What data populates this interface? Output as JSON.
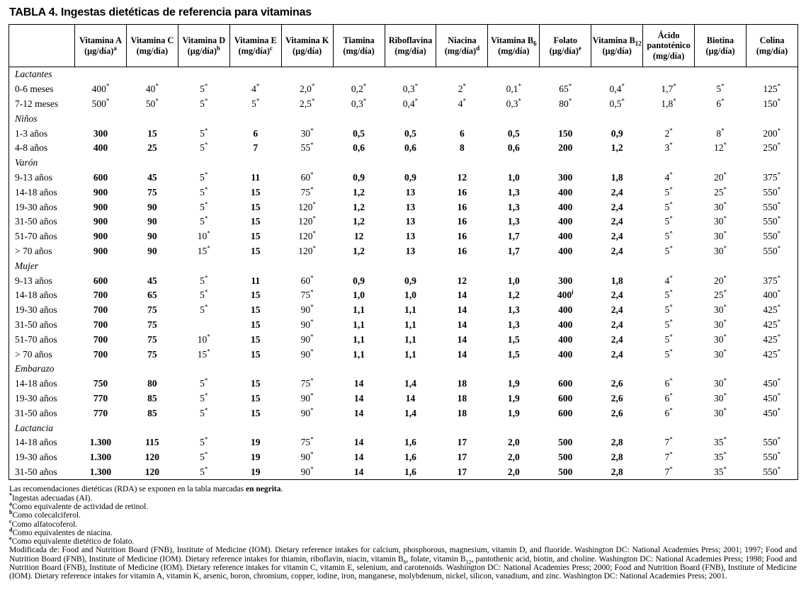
{
  "page": {
    "title": "TABLA 4. Ingestas dietéticas de referencia para vitaminas"
  },
  "table": {
    "row_header_label": "",
    "columns": [
      "Vitamina A|(µg/día)^{a}",
      "Vitamina C|(mg/día)",
      "Vitamina D|(µg/día)^{b}",
      "Vitamina E|(mg/día)^{c}",
      "Vitamina K|(µg/día)",
      "Tiamina|(mg/día)",
      "Riboflavina|(mg/día)",
      "Niacina|(mg/día)^{d}",
      "Vitamina B_{6}|(mg/día)",
      "Folato|(µg/día)^{e}",
      "Vitamina B_{12}|(µg/día)",
      "Ácido pantoténico|(mg/día)",
      "Biotina|(µg/día)",
      "Colina|(mg/día)"
    ],
    "rows": [
      {
        "type": "section",
        "label": "Lactantes"
      },
      {
        "type": "data",
        "label": "0-6 meses",
        "cells": [
          "400^{*}",
          "40^{*}",
          "5^{*}",
          "4^{*}",
          "2,0^{*}",
          "0,2^{*}",
          "0,3^{*}",
          "2^{*}",
          "0,1^{*}",
          "65^{*}",
          "0,4^{*}",
          "1,7^{*}",
          "5^{*}",
          "125^{*}"
        ]
      },
      {
        "type": "data",
        "label": "7-12 meses",
        "cells": [
          "500^{*}",
          "50^{*}",
          "5^{*}",
          "5^{*}",
          "2,5^{*}",
          "0,3^{*}",
          "0,4^{*}",
          "4^{*}",
          "0,3^{*}",
          "80^{*}",
          "0,5^{*}",
          "1,8^{*}",
          "6^{*}",
          "150^{*}"
        ]
      },
      {
        "type": "section",
        "label": "Niños"
      },
      {
        "type": "data",
        "label": "1-3 años",
        "cells": [
          "**300**",
          "**15**",
          "5^{*}",
          "**6**",
          "30^{*}",
          "**0,5**",
          "**0,5**",
          "**6**",
          "**0,5**",
          "**150**",
          "**0,9**",
          "2^{*}",
          "8^{*}",
          "200^{*}"
        ]
      },
      {
        "type": "data",
        "label": "4-8 años",
        "cells": [
          "**400**",
          "**25**",
          "5^{*}",
          "**7**",
          "55^{*}",
          "**0,6**",
          "**0,6**",
          "**8**",
          "**0,6**",
          "**200**",
          "**1,2**",
          "3^{*}",
          "12^{*}",
          "250^{*}"
        ]
      },
      {
        "type": "section",
        "label": "Varón"
      },
      {
        "type": "data",
        "label": "9-13 años",
        "cells": [
          "**600**",
          "**45**",
          "5^{*}",
          "**11**",
          "60^{*}",
          "**0,9**",
          "**0,9**",
          "**12**",
          "**1,0**",
          "**300**",
          "**1,8**",
          "4^{*}",
          "20^{*}",
          "375^{*}"
        ]
      },
      {
        "type": "data",
        "label": "14-18 años",
        "cells": [
          "**900**",
          "**75**",
          "5^{*}",
          "**15**",
          "75^{*}",
          "**1,2**",
          "**13**",
          "**16**",
          "**1,3**",
          "**400**",
          "**2,4**",
          "5^{*}",
          "25^{*}",
          "550^{*}"
        ]
      },
      {
        "type": "data",
        "label": "19-30 años",
        "cells": [
          "**900**",
          "**90**",
          "5^{*}",
          "**15**",
          "120^{*}",
          "**1,2**",
          "**13**",
          "**16**",
          "**1,3**",
          "**400**",
          "**2,4**",
          "5^{*}",
          "30^{*}",
          "550^{*}"
        ]
      },
      {
        "type": "data",
        "label": "31-50 años",
        "cells": [
          "**900**",
          "**90**",
          "5^{*}",
          "**15**",
          "120^{*}",
          "**1,2**",
          "**13**",
          "**16**",
          "**1,3**",
          "**400**",
          "**2,4**",
          "5^{*}",
          "30^{*}",
          "550^{*}"
        ]
      },
      {
        "type": "data",
        "label": "51-70 años",
        "cells": [
          "**900**",
          "**90**",
          "10^{*}",
          "**15**",
          "120^{*}",
          "**12**",
          "**13**",
          "**16**",
          "**1,7**",
          "**400**",
          "**2,4**",
          "5^{*}",
          "30^{*}",
          "550^{*}"
        ]
      },
      {
        "type": "data",
        "label": "> 70 años",
        "cells": [
          "**900**",
          "**90**",
          "15^{*}",
          "**15**",
          "120^{*}",
          "**1,2**",
          "**13**",
          "**16**",
          "**1,7**",
          "**400**",
          "**2,4**",
          "5^{*}",
          "30^{*}",
          "550^{*}"
        ]
      },
      {
        "type": "section",
        "label": "Mujer"
      },
      {
        "type": "data",
        "label": "9-13 años",
        "cells": [
          "**600**",
          "**45**",
          "5^{*}",
          "**11**",
          "60^{*}",
          "**0,9**",
          "**0,9**",
          "**12**",
          "**1,0**",
          "**300**",
          "**1,8**",
          "4^{*}",
          "20^{*}",
          "375^{*}"
        ]
      },
      {
        "type": "data",
        "label": "14-18 años",
        "cells": [
          "**700**",
          "**65**",
          "5^{*}",
          "**15**",
          "75^{*}",
          "**1,0**",
          "**1,0**",
          "**14**",
          "**1,2**",
          "**400^{i}**",
          "**2,4**",
          "5^{*}",
          "25^{*}",
          "400^{*}"
        ]
      },
      {
        "type": "data",
        "label": "19-30 años",
        "cells": [
          "**700**",
          "**75**",
          "5^{*}",
          "**15**",
          "90^{*}",
          "**1,1**",
          "**1,1**",
          "**14**",
          "**1,3**",
          "**400**",
          "**2,4**",
          "5^{*}",
          "30^{*}",
          "425^{*}"
        ]
      },
      {
        "type": "data",
        "label": "31-50 años",
        "cells": [
          "**700**",
          "**75**",
          "",
          "**15**",
          "90^{*}",
          "**1,1**",
          "**1,1**",
          "**14**",
          "**1,3**",
          "**400**",
          "**2,4**",
          "5^{*}",
          "30^{*}",
          "425^{*}"
        ]
      },
      {
        "type": "data",
        "label": "51-70 años",
        "cells": [
          "**700**",
          "**75**",
          "10^{*}",
          "**15**",
          "90^{*}",
          "**1,1**",
          "**1,1**",
          "**14**",
          "**1,5**",
          "**400**",
          "**2,4**",
          "5^{*}",
          "30^{*}",
          "425^{*}"
        ]
      },
      {
        "type": "data",
        "label": "> 70 años",
        "cells": [
          "**700**",
          "**75**",
          "15^{*}",
          "**15**",
          "90^{*}",
          "**1,1**",
          "**1,1**",
          "**14**",
          "**1,5**",
          "**400**",
          "**2,4**",
          "5^{*}",
          "30^{*}",
          "425^{*}"
        ]
      },
      {
        "type": "section",
        "label": "Embarazo"
      },
      {
        "type": "data",
        "label": "14-18 años",
        "cells": [
          "**750**",
          "**80**",
          "5^{*}",
          "**15**",
          "75^{*}",
          "**14**",
          "**1,4**",
          "**18**",
          "**1,9**",
          "**600**",
          "**2,6**",
          "6^{*}",
          "30^{*}",
          "450^{*}"
        ]
      },
      {
        "type": "data",
        "label": "19-30 años",
        "cells": [
          "**770**",
          "**85**",
          "5^{*}",
          "**15**",
          "90^{*}",
          "**14**",
          "**14**",
          "**18**",
          "**1,9**",
          "**600**",
          "**2,6**",
          "6^{*}",
          "30^{*}",
          "450^{*}"
        ]
      },
      {
        "type": "data",
        "label": "31-50 años",
        "cells": [
          "**770**",
          "**85**",
          "5^{*}",
          "**15**",
          "90^{*}",
          "**14**",
          "**1,4**",
          "**18**",
          "**1,9**",
          "**600**",
          "**2,6**",
          "6^{*}",
          "30^{*}",
          "450^{*}"
        ]
      },
      {
        "type": "section",
        "label": "Lactancia"
      },
      {
        "type": "data",
        "label": "14-18 años",
        "cells": [
          "**1.300**",
          "**115**",
          "5^{*}",
          "**19**",
          "75^{*}",
          "**14**",
          "**1,6**",
          "**17**",
          "**2,0**",
          "**500**",
          "**2,8**",
          "7^{*}",
          "35^{*}",
          "550^{*}"
        ]
      },
      {
        "type": "data",
        "label": "19-30 años",
        "cells": [
          "**1.300**",
          "**120**",
          "5^{*}",
          "**19**",
          "90^{*}",
          "**14**",
          "**1,6**",
          "**17**",
          "**2,0**",
          "**500**",
          "**2,8**",
          "7^{*}",
          "35^{*}",
          "550^{*}"
        ]
      },
      {
        "type": "data",
        "label": "31-50 años",
        "cells": [
          "**1.300**",
          "**120**",
          "5^{*}",
          "**19**",
          "90^{*}",
          "**14**",
          "**1,6**",
          "**17**",
          "**2,0**",
          "**500**",
          "**2,8**",
          "7^{*}",
          "35^{*}",
          "550^{*}"
        ]
      }
    ]
  },
  "notes": {
    "lines": [
      "Las recomendaciones dietéticas (RDA) se exponen en la tabla marcadas **en negrita**.",
      "^{*}Ingestas adecuadas (AI).",
      "^{a}Como equivalente de actividad de retinol.",
      "^{b}Como colecalciferol.",
      "^{c}Como alfatocoferol.",
      "^{d}Como equivalentes de niacina.",
      "^{e}Como equivalente dietético de folato."
    ],
    "source": "Modificada de: Food and Nutrition Board (FNB), Institute of Medicine (IOM). Dietary reference intakes for calcium, phosphorous, magnesium, vitamin D, and fluoride. Washington DC: National Academies Press; 2001; 1997; Food and Nutrition Board (FNB), Institute of Medicine (IOM). Dietary reference intakes for thiamin, riboflavin, niacin, vitamin B_{6}, folate, vitamin B_{12}, pantothenic acid, biotin, and choline. Washington DC: National Academies Press; 1998; Food and Nutrition Board (FNB), Institute of Medicine (IOM). Dietary reference intakes for vitamin C, vitamin E, selenium, and carotenoids. Washington DC: National Academies Press; 2000; Food and Nutrition Board (FNB), Institute of Medicine (IOM). Dietary reference intakes for vitamin A, vitamin K, arsenic, boron, chromium, copper, iodine, iron, manganese, molybdenum, nickel, silicon, vanadium, and zinc. Washington DC: National Academies Press; 2001."
  }
}
